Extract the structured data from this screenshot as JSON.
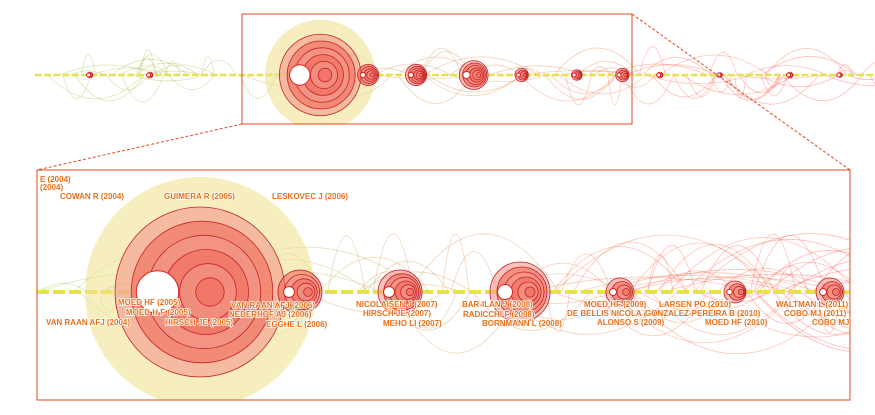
{
  "zoom_labels": [
    "E (2004)",
    "(2004)",
    "COWAN R (2004)",
    "GUIMERA R (2005)",
    "LESKOVEC J (2006)",
    "MOED HF (2005)",
    "MOED H F (2005)",
    "HIRSCH JE (2005)",
    "VAN RAAN AFJ (2004)",
    "VAN RAAN AFJ (2006)",
    "NEDERHOF AJ (2006)",
    "EGGHE L (2006)",
    "NICOLAISEN J (2007)",
    "HIRSCH JE (2007)",
    "MEHO LI (2007)",
    "BAR-ILAN J (2008)",
    "RADICCHI F (2008)",
    "BORNMANN L (2008)",
    "MOED HF (2009)",
    "DE BELLIS NICOLA (2009)",
    "ALONSO S (2009)",
    "LARSEN PO (2010)",
    "GONZALEZ-PEREIRA B (2010)",
    "MOED HF (2010)",
    "WALTMAN L (2011)",
    "COBO MJ (2011)",
    "COBO MJ"
  ]
}
